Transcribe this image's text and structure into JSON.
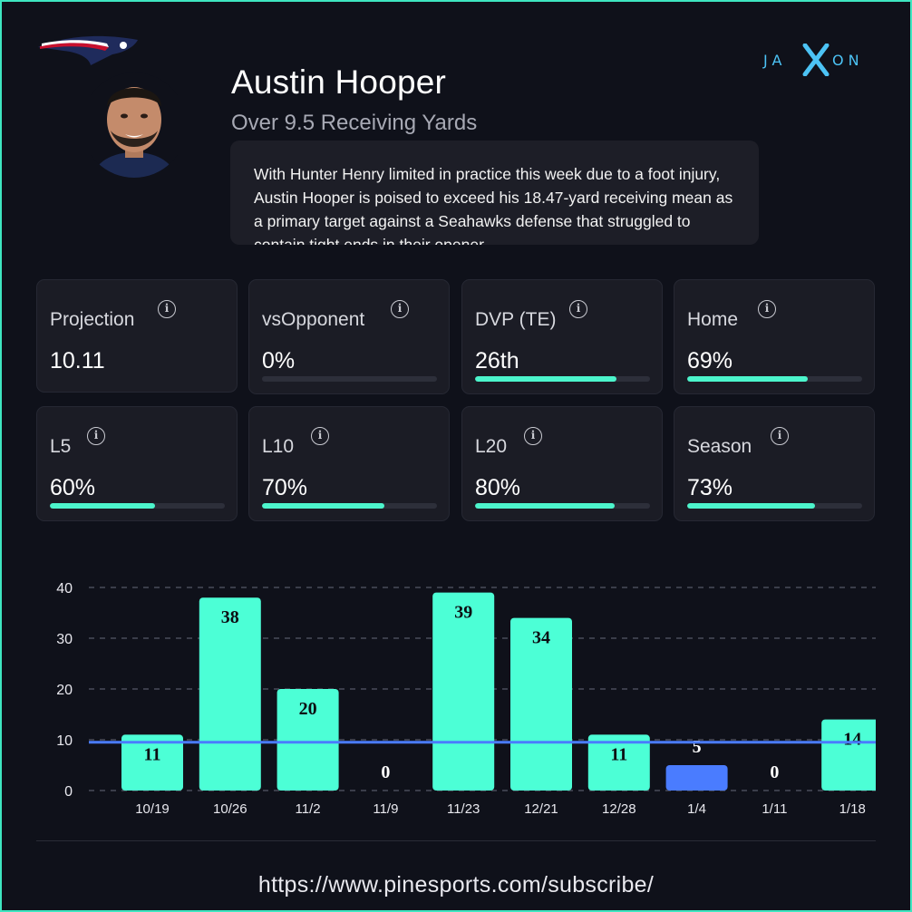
{
  "player": {
    "name": "Austin Hooper",
    "prop": "Over 9.5 Receiving Yards",
    "analysis": "With Hunter Henry limited in practice this week due to a foot injury, Austin Hooper is poised to exceed his 18.47-yard receiving mean as a primary target against a Seahawks defense that struggled to contain tight ends in their opener."
  },
  "brand": {
    "name": "JAXON",
    "accent": "#4cc3f5"
  },
  "stats": [
    {
      "label": "Projection",
      "value": "10.11",
      "progress": null
    },
    {
      "label": "vsOpponent",
      "value": "0%",
      "progress": 0
    },
    {
      "label": "DVP (TE)",
      "value": "26th",
      "progress": 0.81
    },
    {
      "label": "Home",
      "value": "69%",
      "progress": 0.69
    },
    {
      "label": "L5",
      "value": "60%",
      "progress": 0.6
    },
    {
      "label": "L10",
      "value": "70%",
      "progress": 0.7
    },
    {
      "label": "L20",
      "value": "80%",
      "progress": 0.8
    },
    {
      "label": "Season",
      "value": "73%",
      "progress": 0.73
    }
  ],
  "colors": {
    "bar": "#4cffd6",
    "bar_highlight": "#4a7cff",
    "line": "#4a7cff",
    "progress": "#4cf5cc"
  },
  "chart_data": {
    "type": "bar",
    "categories": [
      "10/19",
      "10/26",
      "11/2",
      "11/9",
      "11/23",
      "12/21",
      "12/28",
      "1/4",
      "1/11",
      "1/18"
    ],
    "values": [
      11,
      38,
      20,
      0,
      39,
      34,
      11,
      5,
      0,
      14
    ],
    "highlight_index": 7,
    "threshold": 9.5,
    "yticks": [
      0,
      10,
      20,
      30,
      40
    ],
    "ylim": [
      0,
      40
    ],
    "title": "",
    "xlabel": "",
    "ylabel": ""
  },
  "footer": {
    "url": "https://www.pinesports.com/subscribe/"
  }
}
